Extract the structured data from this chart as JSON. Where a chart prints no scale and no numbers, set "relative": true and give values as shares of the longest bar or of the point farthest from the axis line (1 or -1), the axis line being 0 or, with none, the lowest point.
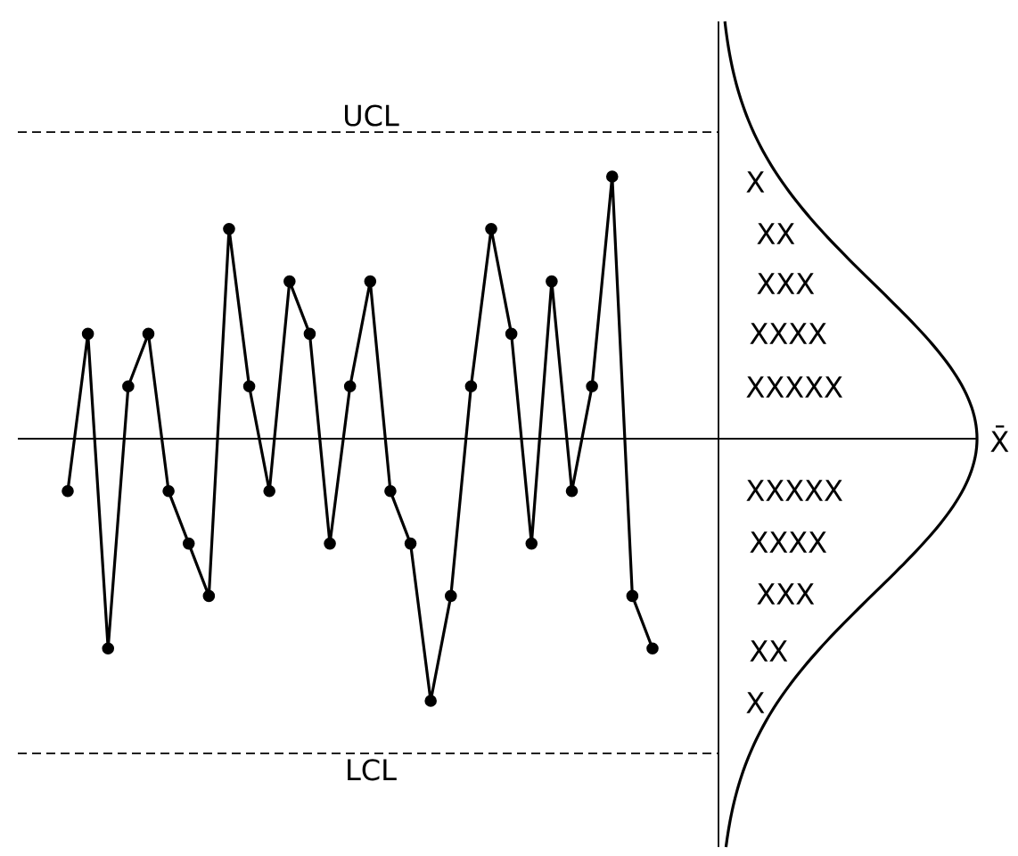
{
  "chart_data": {
    "type": "line",
    "relative": true,
    "categories": [
      null,
      null,
      null,
      null,
      null,
      null,
      null,
      null,
      null,
      null,
      null,
      null,
      null,
      null,
      null,
      null,
      null,
      null,
      null,
      null,
      null,
      null,
      null,
      null,
      null,
      null,
      null,
      null,
      null,
      null
    ],
    "series": [
      {
        "color": "#000000",
        "values": [
          -0.2,
          0.4,
          -0.8,
          0.2,
          0.4,
          -0.2,
          -0.4,
          -0.6,
          0.8,
          0.2,
          -0.2,
          0.6,
          0.4,
          -0.4,
          0.2,
          0.6,
          -0.2,
          -0.4,
          -1,
          -0.6,
          0.2,
          0.8,
          0.4,
          -0.4,
          0.6,
          -0.2,
          0.2,
          1,
          -0.6,
          -0.8
        ]
      }
    ],
    "marker": "circle",
    "line_style": "solid",
    "ref_lines": [
      {
        "axis": "y",
        "value": 1.17,
        "label": "UCL",
        "line_style": "dashed",
        "color": "#000000"
      },
      {
        "axis": "y",
        "value": 0,
        "label": "X̄",
        "line_style": "solid",
        "color": "#000000"
      },
      {
        "axis": "y",
        "value": -1.2,
        "label": "LCL",
        "line_style": "dashed",
        "color": "#000000"
      }
    ],
    "annotations": [
      "X",
      "XX",
      "XXX",
      "XXXX",
      "XXXXX",
      "XXXXX",
      "XXXX",
      "XXX",
      "XX",
      "X"
    ]
  }
}
